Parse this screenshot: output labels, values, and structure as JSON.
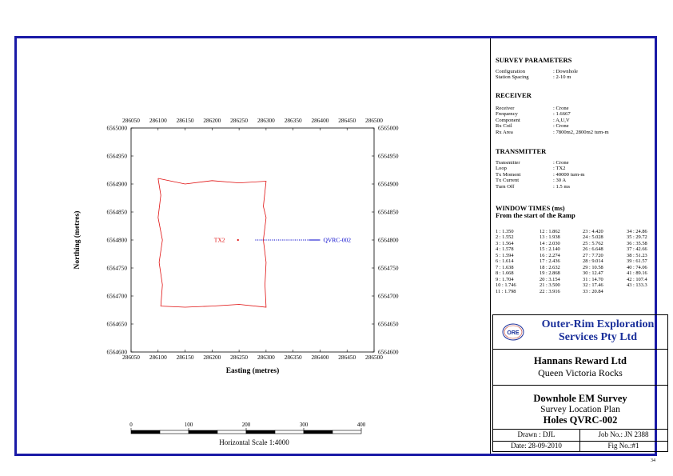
{
  "chart_data": {
    "type": "scatter",
    "xlabel": "Easting (metres)",
    "ylabel": "Northing (metres)",
    "xlim": [
      286050,
      286500
    ],
    "ylim": [
      6564600,
      6565000
    ],
    "x_ticks": [
      "286050",
      "286100",
      "286150",
      "286200",
      "286250",
      "286300",
      "286350",
      "286400",
      "286450",
      "286500"
    ],
    "y_ticks": [
      "6565000",
      "6564950",
      "6564900",
      "6564850",
      "6564800",
      "6564750",
      "6564700",
      "6564650",
      "6564600"
    ],
    "grid": false,
    "loop_label": "TX2",
    "loop_outline": [
      [
        286100,
        6564910
      ],
      [
        286150,
        6564900
      ],
      [
        286200,
        6564906
      ],
      [
        286250,
        6564902
      ],
      [
        286300,
        6564905
      ],
      [
        286295,
        6564860
      ],
      [
        286300,
        6564840
      ],
      [
        286295,
        6564800
      ],
      [
        286300,
        6564760
      ],
      [
        286298,
        6564720
      ],
      [
        286300,
        6564680
      ],
      [
        286250,
        6564685
      ],
      [
        286200,
        6564682
      ],
      [
        286150,
        6564680
      ],
      [
        286105,
        6564682
      ],
      [
        286108,
        6564720
      ],
      [
        286102,
        6564760
      ],
      [
        286108,
        6564800
      ],
      [
        286100,
        6564840
      ],
      [
        286105,
        6564880
      ],
      [
        286100,
        6564910
      ]
    ],
    "loop_marker": [
      286248,
      6564800
    ],
    "hole": {
      "name": "QVRC-002",
      "x_start": 286280,
      "x_end": 286400,
      "y": 6564800,
      "color": "#0000cc"
    },
    "loop_color": "#e01010"
  },
  "scalebar": {
    "ticks": [
      "0",
      "100",
      "200",
      "300",
      "400"
    ],
    "caption": "Horizontal Scale 1:4000"
  },
  "survey_parameters": {
    "title": "SURVEY PARAMETERS",
    "rows": [
      {
        "k": "Configuration",
        "v": ": Downhole"
      },
      {
        "k": "Station Spacing",
        "v": ": 2-10 m"
      }
    ]
  },
  "receiver": {
    "title": "RECEIVER",
    "rows": [
      {
        "k": "Receiver",
        "v": ": Crone"
      },
      {
        "k": "Frequency",
        "v": ": 1.6667"
      },
      {
        "k": "Component",
        "v": ": A,U,V"
      },
      {
        "k": "Rx Coil",
        "v": ": Crone"
      },
      {
        "k": "Rx Area",
        "v": ": 7800m2, 2800m2 turn-m"
      }
    ]
  },
  "transmitter": {
    "title": "TRANSMITTER",
    "rows": [
      {
        "k": "Transmitter",
        "v": ": Crone"
      },
      {
        "k": "Loop",
        "v": ": TX2"
      },
      {
        "k": "Tx Moment",
        "v": ": 40000 turn-m"
      },
      {
        "k": "Tx Current",
        "v": ": 30 A"
      },
      {
        "k": "Turn Off",
        "v": ": 1.5 ms"
      }
    ]
  },
  "window_times": {
    "title1": "WINDOW TIMES (ms)",
    "title2": "From the start of the Ramp",
    "columns": [
      [
        "1    : 1.350",
        "2    : 1.552",
        "3    : 1.564",
        "4    : 1.578",
        "5    : 1.594",
        "6    : 1.614",
        "7    : 1.638",
        "8    : 1.668",
        "9    : 1.704",
        "10  : 1.746",
        "11  : 1.798"
      ],
      [
        "12  : 1.862",
        "13  : 1.938",
        "14  : 2.030",
        "15  : 2.140",
        "16  : 2.274",
        "17  : 2.436",
        "18  : 2.632",
        "19  : 2.868",
        "20  : 3.154",
        "21  : 3.500",
        "22  : 3.916"
      ],
      [
        "23  : 4.420",
        "24  : 5.028",
        "25  : 5.762",
        "26  : 6.648",
        "27  : 7.720",
        "28  : 9.014",
        "29  : 10.58",
        "30  : 12.47",
        "31  : 14.70",
        "32  : 17.46",
        "33  : 20.84"
      ],
      [
        "34  : 24.86",
        "35  : 29.72",
        "36  : 35.58",
        "37  : 42.66",
        "38  : 51.23",
        "39  : 61.57",
        "40  : 74.06",
        "41  : 89.16",
        "42  : 107.4",
        "43  : 133.3"
      ]
    ]
  },
  "titleblock": {
    "logo_text": "ORE",
    "company_line1": "Outer-Rim Exploration",
    "company_line2": "Services Pty Ltd",
    "client": "Hannans Reward Ltd",
    "project": "Queen Victoria Rocks",
    "survey": "Downhole EM Survey",
    "plan": "Survey Location Plan",
    "holes": "Holes QVRC-002",
    "drawn": "Drawn : DJL",
    "job": "Job No.: JN 2388",
    "date": "Date: 28-09-2010",
    "fig": "Fig No.:#1",
    "company_color": "#1a2f9a"
  },
  "page_number": "34"
}
